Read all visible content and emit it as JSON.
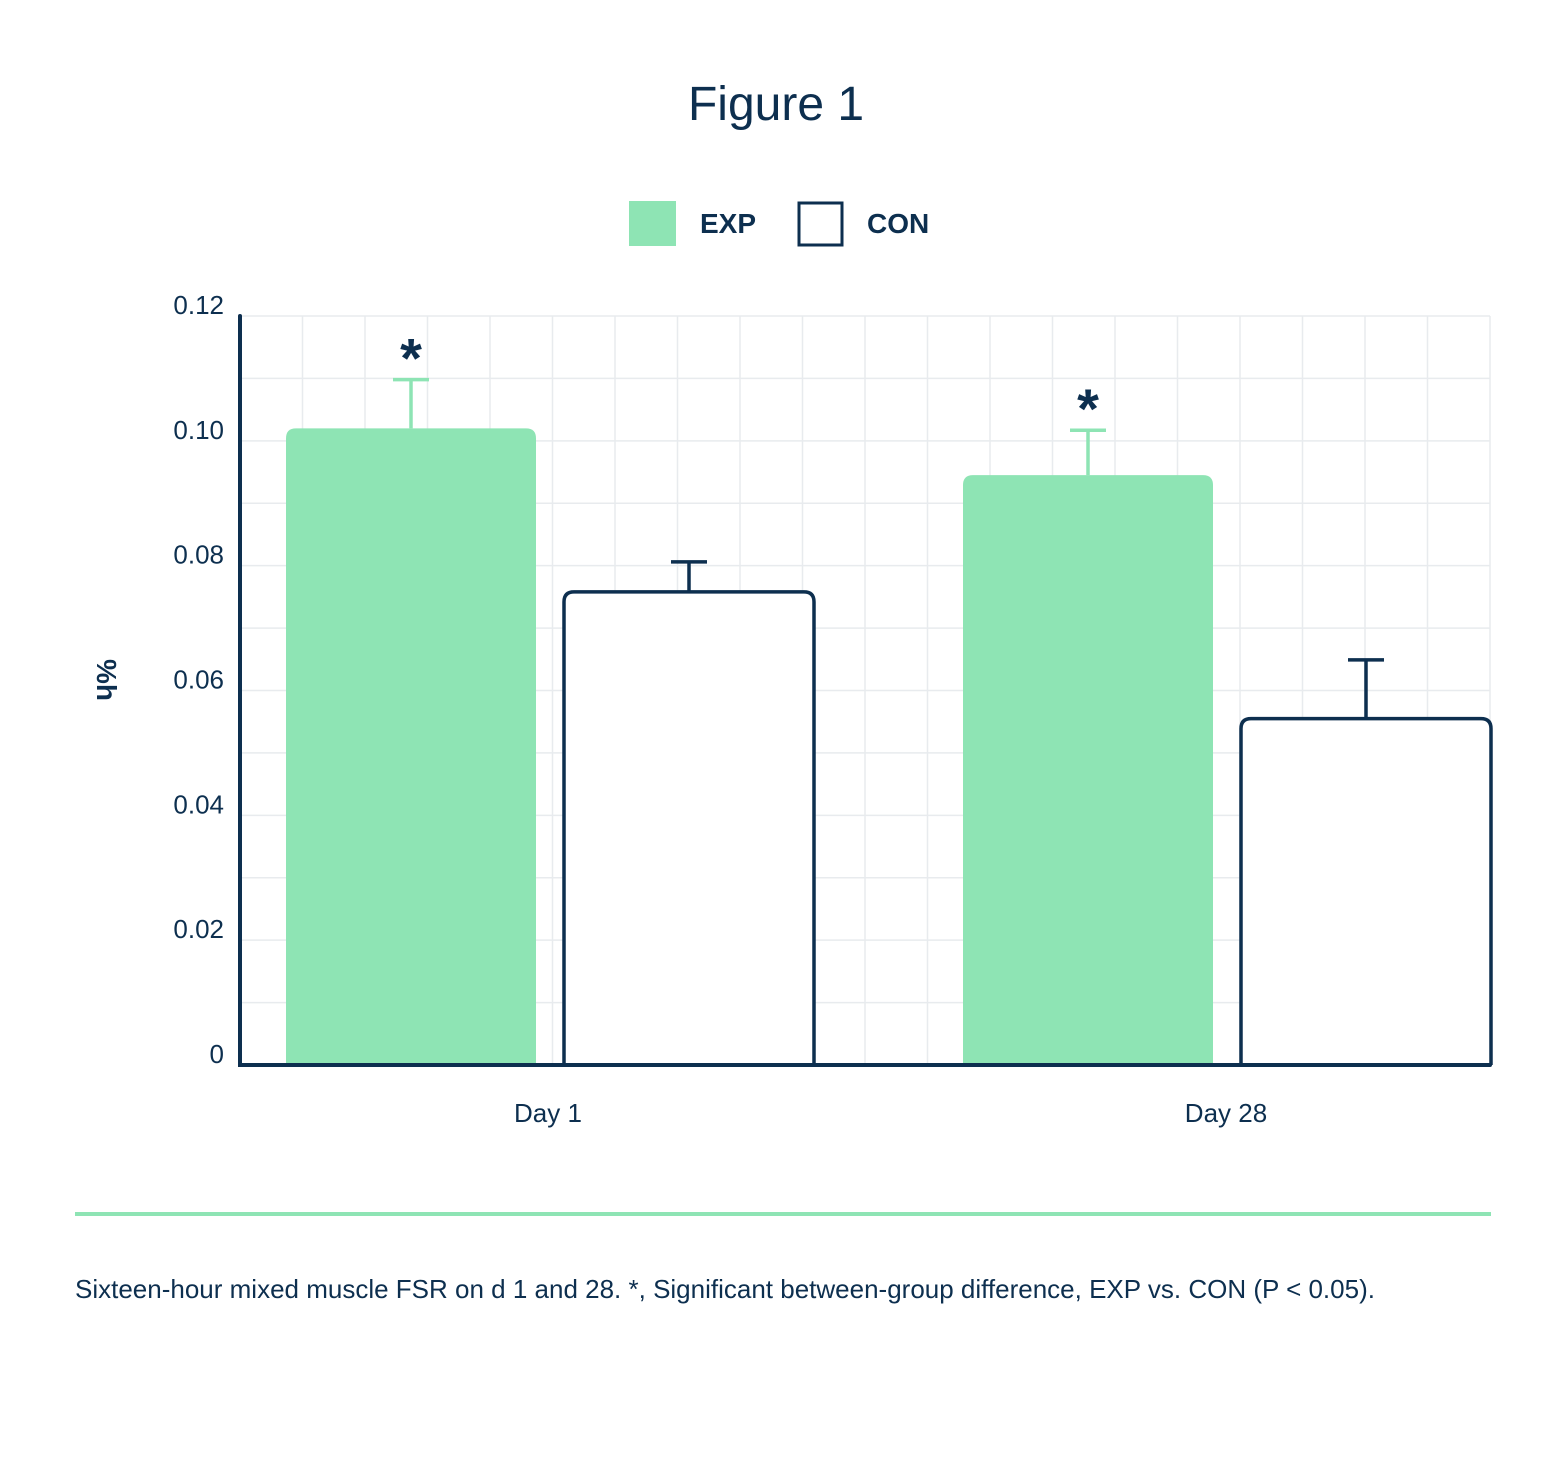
{
  "colors": {
    "exp": "#8ee4b4",
    "con_stroke": "#0d2f4f",
    "text": "#0d2f4f",
    "grid": "#e8ebee",
    "divider": "#8ee4b4"
  },
  "caption": "Sixteen-hour mixed muscle FSR on d 1 and 28. *, Significant between-group difference, EXP vs. CON (P < 0.05).",
  "chart_data": {
    "type": "bar",
    "title": "Figure 1",
    "xlabel": "",
    "ylabel": "%h",
    "ylim": [
      0,
      0.12
    ],
    "yticks": [
      0,
      0.02,
      0.04,
      0.06,
      0.08,
      0.1,
      0.12
    ],
    "ytick_labels": [
      "0",
      "0.02",
      "0.04",
      "0.06",
      "0.08",
      "0.10",
      "0.12"
    ],
    "categories": [
      "Day 1",
      "Day 28"
    ],
    "series": [
      {
        "name": "EXP",
        "values": [
          0.102,
          0.0945
        ],
        "errors": [
          0.0078,
          0.0072
        ]
      },
      {
        "name": "CON",
        "values": [
          0.0758,
          0.0555
        ],
        "errors": [
          0.0048,
          0.0094
        ]
      }
    ],
    "annotations": [
      {
        "text": "*",
        "category": "Day 1",
        "series": "EXP"
      },
      {
        "text": "*",
        "category": "Day 28",
        "series": "EXP"
      }
    ],
    "grid": true,
    "legend": "top-center"
  }
}
